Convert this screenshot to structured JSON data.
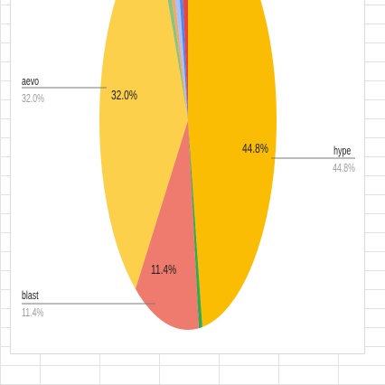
{
  "chart_data": {
    "type": "pie",
    "slices": [
      {
        "label": "hype",
        "value": 44.8,
        "display": "44.8%",
        "color": "#FBBC04"
      },
      {
        "label": "",
        "value": 0.6,
        "display": "",
        "color": "#34A853"
      },
      {
        "label": "blast",
        "value": 11.4,
        "display": "11.4%",
        "color": "#EE7B6E"
      },
      {
        "label": "aevo",
        "value": 32.0,
        "display": "32.0%",
        "color": "#FDD04C"
      },
      {
        "label": "",
        "value": 1.1,
        "display": "",
        "color": "#8BC47F"
      },
      {
        "label": "",
        "value": 0.9,
        "display": "",
        "color": "#F6A66A"
      },
      {
        "label": "",
        "value": 1.3,
        "display": "",
        "color": "#A5C3F6"
      },
      {
        "label": "",
        "value": 1.0,
        "display": "",
        "color": "#5384EC"
      },
      {
        "label": "",
        "value": 1.4,
        "display": "",
        "color": "#E8453C"
      }
    ],
    "legend_labels": [
      {
        "name": "aevo",
        "pct": "32.0%"
      },
      {
        "name": "hype",
        "pct": "44.8%"
      },
      {
        "name": "blast",
        "pct": "11.4%"
      }
    ],
    "inner_labels": [
      "32.0%",
      "44.8%",
      "11.4%"
    ],
    "title": ""
  }
}
